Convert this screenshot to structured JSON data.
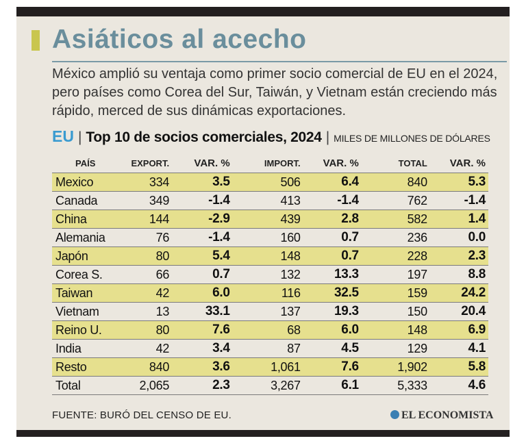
{
  "title": "Asiáticos al acecho",
  "subtitle": "México amplió su ventaja como primer socio comercial de EU en el 2024, pero países como Corea del Sur, Taiwán, y Vietnam están creciendo más rápido, merced de sus dinámicas exportaciones.",
  "heading": {
    "eu": "EU",
    "main": "Top 10 de socios comerciales, 2024",
    "units": "MILES DE MILLONES DE DÓLARES"
  },
  "table": {
    "headers": [
      "PAÍS",
      "EXPORT.",
      "VAR. %",
      "IMPORT.",
      "VAR. %",
      "TOTAL",
      "VAR. %"
    ],
    "rows": [
      [
        "Mexico",
        "334",
        "3.5",
        "506",
        "6.4",
        "840",
        "5.3"
      ],
      [
        "Canada",
        "349",
        "-1.4",
        "413",
        "-1.4",
        "762",
        "-1.4"
      ],
      [
        "China",
        "144",
        "-2.9",
        "439",
        "2.8",
        "582",
        "1.4"
      ],
      [
        "Alemania",
        "76",
        "-1.4",
        "160",
        "0.7",
        "236",
        "0.0"
      ],
      [
        "Japón",
        "80",
        "5.4",
        "148",
        "0.7",
        "228",
        "2.3"
      ],
      [
        "Corea S.",
        "66",
        "0.7",
        "132",
        "13.3",
        "197",
        "8.8"
      ],
      [
        "Taiwan",
        "42",
        "6.0",
        "116",
        "32.5",
        "159",
        "24.2"
      ],
      [
        "Vietnam",
        "13",
        "33.1",
        "137",
        "19.3",
        "150",
        "20.4"
      ],
      [
        "Reino U.",
        "80",
        "7.6",
        "68",
        "6.0",
        "148",
        "6.9"
      ],
      [
        "India",
        "42",
        "3.4",
        "87",
        "4.5",
        "129",
        "4.1"
      ],
      [
        "Resto",
        "840",
        "3.6",
        "1,061",
        "7.6",
        "1,902",
        "5.8"
      ],
      [
        "Total",
        "2,065",
        "2.3",
        "3,267",
        "6.1",
        "5,333",
        "4.6"
      ]
    ]
  },
  "source": "FUENTE: BURÓ DEL CENSO DE EU.",
  "logo": "EL ECONOMISTA",
  "colors": {
    "title": "#6a8e9c",
    "accent": "#c9c64e",
    "eu": "#3a9bd0",
    "row_highlight": "#e6e08e",
    "panel": "#ebe7df"
  }
}
